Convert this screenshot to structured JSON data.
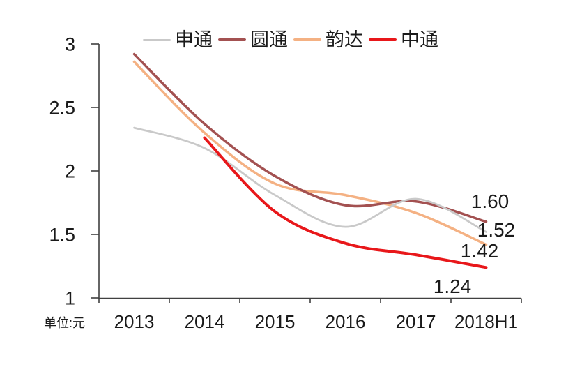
{
  "page": {
    "background": "#ffffff"
  },
  "chart_data": {
    "type": "line",
    "title": "",
    "unit_label": "单位:元",
    "categories": [
      "2013",
      "2014",
      "2015",
      "2016",
      "2017",
      "2018H1"
    ],
    "xlabel": "",
    "ylabel": "",
    "ylim": [
      1,
      3
    ],
    "yticks": [
      1,
      1.5,
      2,
      2.5,
      3
    ],
    "ytick_labels": [
      "1",
      "1.5",
      "2",
      "2.5",
      "3"
    ],
    "grid": false,
    "legend_position": "top",
    "axis_color": "#404040",
    "text_color": "#1a1a1a",
    "series": [
      {
        "id": "shentong",
        "name": "申通",
        "color": "#c9c9c9",
        "line_width": 2.75,
        "values": [
          2.34,
          2.18,
          1.81,
          1.56,
          1.78,
          1.52
        ],
        "end_label": "1.52"
      },
      {
        "id": "yuantong",
        "name": "圆通",
        "color": "#a35151",
        "line_width": 3.5,
        "values": [
          2.92,
          2.37,
          1.96,
          1.73,
          1.76,
          1.6
        ],
        "end_label": "1.60"
      },
      {
        "id": "yunda",
        "name": "韵达",
        "color": "#f4b183",
        "line_width": 3.5,
        "values": [
          2.86,
          2.3,
          1.9,
          1.81,
          1.67,
          1.42
        ],
        "end_label": "1.42"
      },
      {
        "id": "zhongtong",
        "name": "中通",
        "color": "#e8171a",
        "line_width": 4,
        "values": [
          null,
          2.26,
          1.68,
          1.43,
          1.34,
          1.24
        ],
        "end_label": "1.24"
      }
    ]
  }
}
